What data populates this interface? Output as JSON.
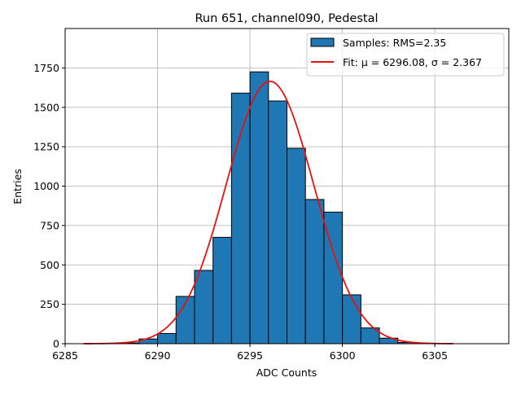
{
  "chart_data": {
    "type": "bar",
    "title": "Run 651, channel090, Pedestal",
    "xlabel": "ADC Counts",
    "ylabel": "Entries",
    "xlim": [
      6285,
      6309
    ],
    "ylim": [
      0,
      2000
    ],
    "grid": true,
    "x_ticks": [
      6285,
      6290,
      6295,
      6300,
      6305
    ],
    "x_tick_labels": [
      "6285",
      "6290",
      "6295",
      "6300",
      "6305"
    ],
    "y_ticks": [
      0,
      250,
      500,
      750,
      1000,
      1250,
      1500,
      1750
    ],
    "y_tick_labels": [
      "0",
      "250",
      "500",
      "750",
      "1000",
      "1250",
      "1500",
      "1750"
    ],
    "bins": [
      {
        "left": 6286,
        "right": 6287,
        "value": 0
      },
      {
        "left": 6287,
        "right": 6288,
        "value": 0
      },
      {
        "left": 6288,
        "right": 6289,
        "value": 5
      },
      {
        "left": 6289,
        "right": 6290,
        "value": 30
      },
      {
        "left": 6290,
        "right": 6291,
        "value": 65
      },
      {
        "left": 6291,
        "right": 6292,
        "value": 300
      },
      {
        "left": 6292,
        "right": 6293,
        "value": 465
      },
      {
        "left": 6293,
        "right": 6294,
        "value": 675
      },
      {
        "left": 6294,
        "right": 6295,
        "value": 1590
      },
      {
        "left": 6295,
        "right": 6296,
        "value": 1725
      },
      {
        "left": 6296,
        "right": 6297,
        "value": 1540
      },
      {
        "left": 6297,
        "right": 6298,
        "value": 1240
      },
      {
        "left": 6298,
        "right": 6299,
        "value": 915
      },
      {
        "left": 6299,
        "right": 6300,
        "value": 835
      },
      {
        "left": 6300,
        "right": 6301,
        "value": 310
      },
      {
        "left": 6301,
        "right": 6302,
        "value": 100
      },
      {
        "left": 6302,
        "right": 6303,
        "value": 35
      },
      {
        "left": 6303,
        "right": 6304,
        "value": 8
      },
      {
        "left": 6304,
        "right": 6305,
        "value": 2
      },
      {
        "left": 6305,
        "right": 6306,
        "value": 0
      }
    ],
    "fit": {
      "type": "gaussian",
      "mu": 6296.08,
      "sigma": 2.367,
      "amplitude": 1665,
      "x_range": [
        6286,
        6306
      ]
    },
    "legend": {
      "position": "top-right",
      "entries": [
        {
          "name": "Samples: RMS=2.35",
          "kind": "patch"
        },
        {
          "name": "Fit: μ = 6296.08, σ = 2.367",
          "kind": "line"
        }
      ]
    },
    "colors": {
      "bar_fill": "#1f77b4",
      "bar_edge": "#000000",
      "fit_line": "#e8110f",
      "grid": "#b0b0b0"
    }
  }
}
